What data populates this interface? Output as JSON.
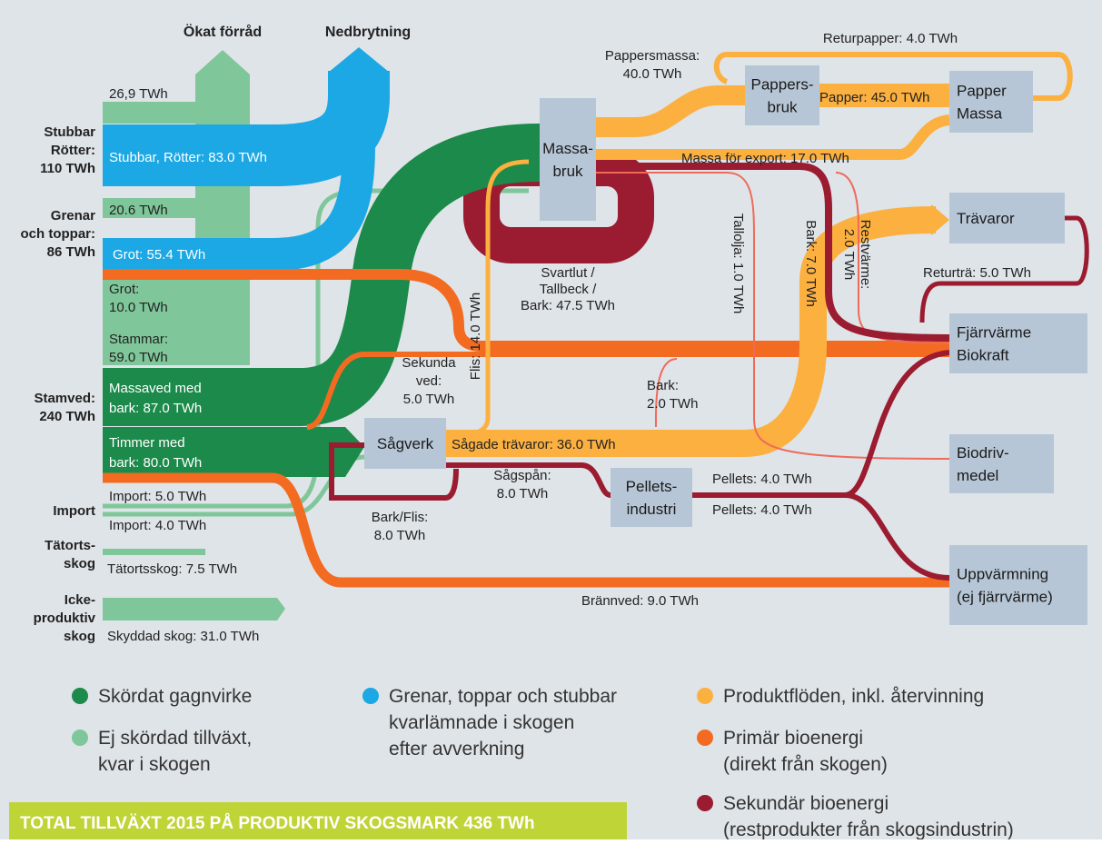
{
  "header": {
    "columns": [
      "Ökat förråd",
      "Nedbrytning"
    ]
  },
  "sources": [
    {
      "lines": [
        "Stubbar",
        "Rötter:",
        "110 TWh"
      ]
    },
    {
      "lines": [
        "Grenar",
        "och toppar:",
        "86 TWh"
      ]
    },
    {
      "lines": [
        "Stamved:",
        "240 TWh"
      ]
    },
    {
      "lines": [
        "Import"
      ]
    },
    {
      "lines": [
        "Tätorts-",
        "skog"
      ]
    },
    {
      "lines": [
        "Icke-",
        "produktiv",
        "skog"
      ]
    }
  ],
  "nodes": [
    {
      "lines": [
        "Massa-",
        "bruk"
      ]
    },
    {
      "lines": [
        "Sågverk"
      ]
    },
    {
      "lines": [
        "Pappers-",
        "bruk"
      ]
    },
    {
      "lines": [
        "Papper",
        "Massa"
      ]
    },
    {
      "lines": [
        "Trävaror"
      ]
    },
    {
      "lines": [
        "Fjärrvärme",
        "Biokraft"
      ]
    },
    {
      "lines": [
        "Biodriv-",
        "medel"
      ]
    },
    {
      "lines": [
        "Uppvärmning",
        "(ej fjärrvärme)"
      ]
    },
    {
      "lines": [
        "Pellets-",
        "industri"
      ]
    }
  ],
  "flows": [
    {
      "lines": [
        "26,9 TWh"
      ]
    },
    {
      "lines": [
        "Stubbar, Rötter: 83.0 TWh"
      ]
    },
    {
      "lines": [
        "20.6 TWh"
      ]
    },
    {
      "lines": [
        "Grot: 55.4 TWh"
      ]
    },
    {
      "lines": [
        "Grot:",
        "10.0 TWh"
      ]
    },
    {
      "lines": [
        "Stammar:",
        "59.0 TWh"
      ]
    },
    {
      "lines": [
        "Massaved med",
        "bark: 87.0 TWh"
      ]
    },
    {
      "lines": [
        "Timmer med",
        "bark: 80.0 TWh"
      ]
    },
    {
      "lines": [
        "Import: 5.0 TWh"
      ]
    },
    {
      "lines": [
        "Import: 4.0 TWh"
      ]
    },
    {
      "lines": [
        "Tätortsskog: 7.5 TWh"
      ]
    },
    {
      "lines": [
        "Skyddad skog: 31.0 TWh"
      ]
    },
    {
      "lines": [
        "Pappersmassa:",
        "40.0 TWh"
      ]
    },
    {
      "lines": [
        "Returpapper: 4.0 TWh"
      ]
    },
    {
      "lines": [
        "Papper: 45.0 TWh"
      ]
    },
    {
      "lines": [
        "Massa för export: 17.0 TWh"
      ]
    },
    {
      "lines": [
        "Svartlut /",
        "Tallbeck /",
        "Bark: 47.5 TWh"
      ]
    },
    {
      "lines": [
        "Flis: 14.0 TWh"
      ]
    },
    {
      "lines": [
        "Tallolja: 1.0 TWh"
      ]
    },
    {
      "lines": [
        "Bark: 7.0 TWh"
      ]
    },
    {
      "lines": [
        "Restvärme:",
        "2.0 TWh"
      ]
    },
    {
      "lines": [
        "Returträ: 5.0 TWh"
      ]
    },
    {
      "lines": [
        "Sekunda",
        "ved:",
        "5.0 TWh"
      ]
    },
    {
      "lines": [
        "Bark:",
        "2.0 TWh"
      ]
    },
    {
      "lines": [
        "Sågade trävaror: 36.0 TWh"
      ]
    },
    {
      "lines": [
        "Sågspån:",
        "8.0 TWh"
      ]
    },
    {
      "lines": [
        "Bark/Flis:",
        "8.0 TWh"
      ]
    },
    {
      "lines": [
        "Pellets: 4.0 TWh"
      ]
    },
    {
      "lines": [
        "Pellets: 4.0 TWh"
      ]
    },
    {
      "lines": [
        "Brännved: 9.0 TWh"
      ]
    }
  ],
  "legend": [
    {
      "lines": [
        "Skördat gagnvirke"
      ]
    },
    {
      "lines": [
        "Ej skördad tillväxt,",
        "kvar i skogen"
      ]
    },
    {
      "lines": [
        "Grenar, toppar och stubbar",
        "kvarlämnade i skogen",
        "efter avverkning"
      ]
    },
    {
      "lines": [
        "Produktflöden, inkl. återvinning"
      ]
    },
    {
      "lines": [
        "Primär bioenergi",
        "(direkt från skogen)"
      ]
    },
    {
      "lines": [
        "Sekundär bioenergi",
        "(restprodukter från skogsindustrin)"
      ]
    }
  ],
  "footer": {
    "text": "TOTAL TILLVÄXT 2015 PÅ PRODUKTIV SKOGSMARK 436 TWh"
  }
}
